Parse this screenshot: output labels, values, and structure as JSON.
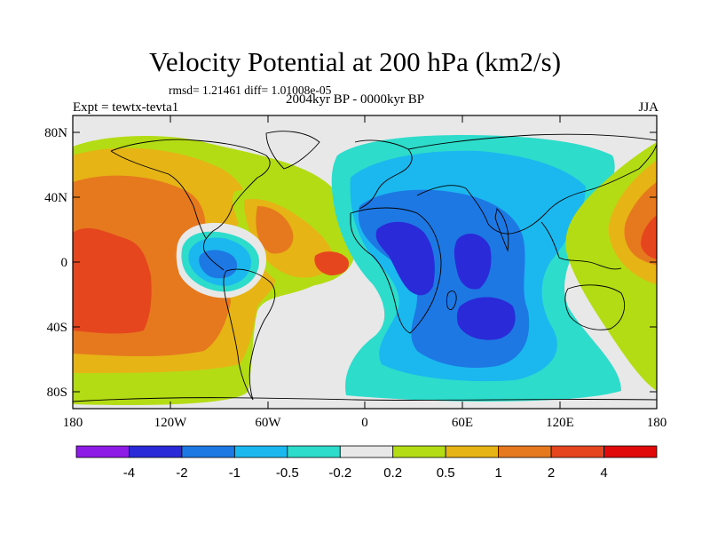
{
  "figure": {
    "title": "Velocity Potential at 200 hPa (km2/s)",
    "stats": "rmsd= 1.21461 diff= 1.01008e-05",
    "experiment": "Expt = tewtx-tevta1",
    "period": "2004kyr BP - 0000kyr BP",
    "season": "JJA"
  },
  "axes": {
    "lat_labels": [
      "80N",
      "40N",
      "0",
      "40S",
      "80S"
    ],
    "lon_labels": [
      "180",
      "120W",
      "60W",
      "0",
      "60E",
      "120E",
      "180"
    ],
    "lat_range": [
      -90,
      90
    ],
    "lon_range": [
      -180,
      180
    ]
  },
  "colorbar": {
    "labels": [
      "-4",
      "-2",
      "-1",
      "-0.5",
      "-0.2",
      "0.2",
      "0.5",
      "1",
      "2",
      "4"
    ],
    "colors": [
      "#8c1ce6",
      "#2a2ad8",
      "#1e78e4",
      "#1ab8ee",
      "#2edccc",
      "#e8e8e8",
      "#b4dc14",
      "#e6b414",
      "#e6781e",
      "#e6461e",
      "#e00a0a"
    ]
  },
  "map_colors": {
    "neutral": "#e8e8e8",
    "outline": "#000000"
  }
}
